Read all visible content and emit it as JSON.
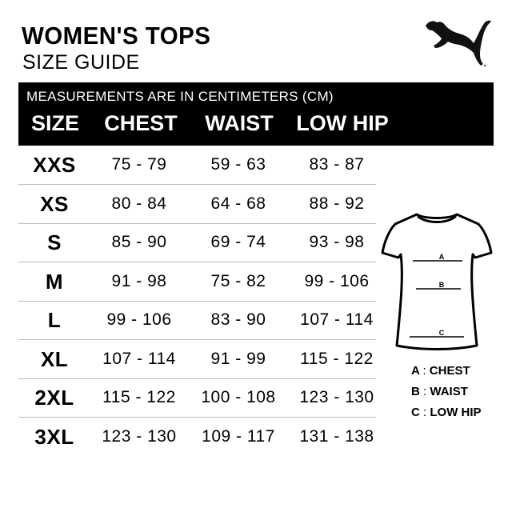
{
  "header": {
    "title": "WOMEN'S TOPS",
    "subtitle": "SIZE GUIDE",
    "brand": "PUMA"
  },
  "table": {
    "note": "MEASUREMENTS ARE IN CENTIMETERS (CM)",
    "columns": [
      "SIZE",
      "CHEST",
      "WAIST",
      "LOW HIP"
    ],
    "rows": [
      [
        "XXS",
        "75 - 79",
        "59 - 63",
        "83 - 87"
      ],
      [
        "XS",
        "80 - 84",
        "64 - 68",
        "88 - 92"
      ],
      [
        "S",
        "85 - 90",
        "69 - 74",
        "93 - 98"
      ],
      [
        "M",
        "91 - 98",
        "75 - 82",
        "99 - 106"
      ],
      [
        "L",
        "99 - 106",
        "83 - 90",
        "107 - 114"
      ],
      [
        "XL",
        "107 - 114",
        "91 - 99",
        "115 - 122"
      ],
      [
        "2XL",
        "115 - 122",
        "100 - 108",
        "123 - 130"
      ],
      [
        "3XL",
        "123 - 130",
        "109 - 117",
        "131 - 138"
      ]
    ]
  },
  "diagram": {
    "labels": [
      "A",
      "B",
      "C"
    ],
    "legend": [
      {
        "key": "A",
        "sep": ":",
        "label": "CHEST"
      },
      {
        "key": "B",
        "sep": ":",
        "label": "WAIST"
      },
      {
        "key": "C",
        "sep": ":",
        "label": "LOW HIP"
      }
    ]
  }
}
